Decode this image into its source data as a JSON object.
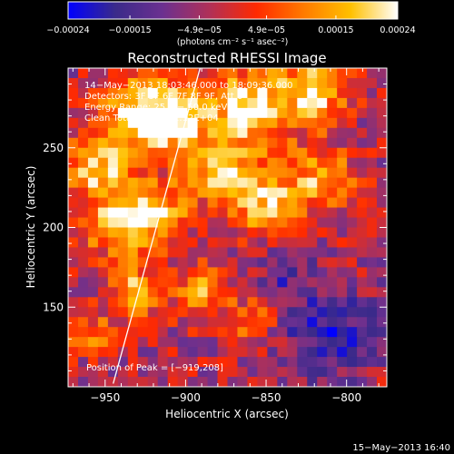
{
  "chart_data": {
    "type": "heatmap",
    "title": "Reconstructed RHESSI Image",
    "xlabel": "Heliocentric X (arcsec)",
    "ylabel": "Heliocentric Y (arcsec)",
    "xlim": [
      -973,
      -775
    ],
    "ylim": [
      100,
      300
    ],
    "x_ticks": [
      -950,
      -900,
      -850,
      -800
    ],
    "y_ticks": [
      150,
      200,
      250
    ],
    "x_tick_labels": [
      "−950",
      "−900",
      "−850",
      "−800"
    ],
    "y_tick_labels": [
      "150",
      "200",
      "250"
    ],
    "colorbar": {
      "range": [
        -0.00024,
        0.00024
      ],
      "ticks": [
        -0.00024,
        -0.00015,
        -4.9e-05,
        4.9e-05,
        0.00015,
        0.00024
      ],
      "tick_labels": [
        "−0.00024",
        "−0.00015",
        "−4.9e−05",
        "4.9e−05",
        "0.00015",
        "0.00024"
      ],
      "units_label": "(photons cm⁻² s⁻¹ asec⁻²)"
    },
    "annotations": [
      "14−May−2013 18:03:46.000 to 18:09:36.000",
      "Detectors: 3F 5F 6F 7F 8F 9F, Att 0",
      "Energy Range: 25.0 − 50.0 keV",
      "Clean     Total counts: 1.12E+04"
    ],
    "peak_label": "Position of Peak = [−919,208]",
    "peak_position": [
      -919,
      208
    ],
    "limb_line": [
      [
        -945,
        102
      ],
      [
        -891,
        300
      ]
    ],
    "grid_description": "32x32 pixelated map; bright yellow-white emission concentrated in the upper-left and upper-center, dark purple/blue negative residuals toward lower right",
    "grid": {
      "cols": 32,
      "rows": 32,
      "seed": 7,
      "hot_spots": [
        {
          "x": -930,
          "y": 270,
          "amp": 1.0,
          "sigma": 16
        },
        {
          "x": -905,
          "y": 270,
          "amp": 0.95,
          "sigma": 14
        },
        {
          "x": -860,
          "y": 275,
          "amp": 1.0,
          "sigma": 18
        },
        {
          "x": -820,
          "y": 285,
          "amp": 0.9,
          "sigma": 14
        },
        {
          "x": -955,
          "y": 235,
          "amp": 0.85,
          "sigma": 14
        },
        {
          "x": -920,
          "y": 210,
          "amp": 0.95,
          "sigma": 14
        },
        {
          "x": -945,
          "y": 200,
          "amp": 0.8,
          "sigma": 12
        },
        {
          "x": -880,
          "y": 235,
          "amp": 0.8,
          "sigma": 14
        },
        {
          "x": -850,
          "y": 215,
          "amp": 0.85,
          "sigma": 14
        },
        {
          "x": -815,
          "y": 230,
          "amp": 0.75,
          "sigma": 14
        },
        {
          "x": -930,
          "y": 160,
          "amp": 0.75,
          "sigma": 12
        },
        {
          "x": -890,
          "y": 160,
          "amp": 0.7,
          "sigma": 12
        },
        {
          "x": -860,
          "y": 140,
          "amp": 0.55,
          "sigma": 10
        },
        {
          "x": -960,
          "y": 130,
          "amp": 0.55,
          "sigma": 12
        }
      ],
      "cold_spots": [
        {
          "x": -810,
          "y": 135,
          "amp": 0.9,
          "sigma": 20
        },
        {
          "x": -840,
          "y": 170,
          "amp": 0.5,
          "sigma": 12
        },
        {
          "x": -960,
          "y": 110,
          "amp": 0.35,
          "sigma": 10
        }
      ]
    }
  },
  "timestamp": "15−May−2013 16:40",
  "colors": {
    "background": "#000000",
    "foreground": "#ffffff",
    "colormap_stops": [
      "#0000ff",
      "#3a2a8a",
      "#6b3090",
      "#b03058",
      "#ff2a00",
      "#ff7a00",
      "#ffc000",
      "#ffffff"
    ]
  }
}
